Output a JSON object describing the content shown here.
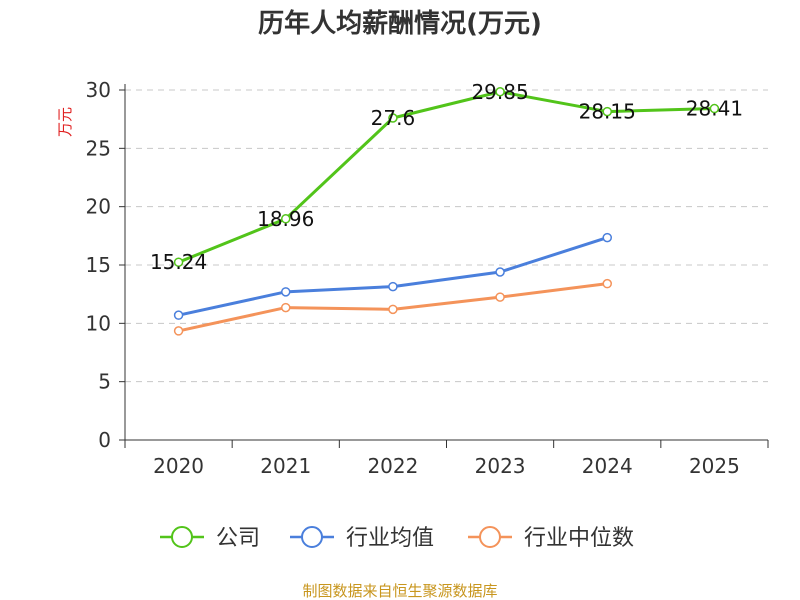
{
  "chart_data": {
    "type": "line",
    "title": "历年人均薪酬情况(万元)",
    "xlabel": "",
    "ylabel": "万元",
    "categories": [
      "2020",
      "2021",
      "2022",
      "2023",
      "2024",
      "2025"
    ],
    "ylim": [
      0,
      30
    ],
    "yticks": [
      0,
      5,
      10,
      15,
      20,
      25,
      30
    ],
    "grid": true,
    "legend_position": "bottom",
    "series": [
      {
        "name": "公司",
        "color": "#52c41a",
        "values": [
          15.24,
          18.96,
          27.6,
          29.85,
          28.15,
          28.41
        ],
        "labels": [
          "15.24",
          "18.96",
          "27.6",
          "29.85",
          "28.15",
          "28.41"
        ]
      },
      {
        "name": "行业均值",
        "color": "#4a7fdc",
        "values": [
          10.7,
          12.7,
          13.15,
          14.4,
          17.35,
          null
        ]
      },
      {
        "name": "行业中位数",
        "color": "#f4935a",
        "values": [
          9.35,
          11.35,
          11.2,
          12.25,
          13.4,
          null
        ]
      }
    ]
  },
  "source_text": "制图数据来自恒生聚源数据库"
}
